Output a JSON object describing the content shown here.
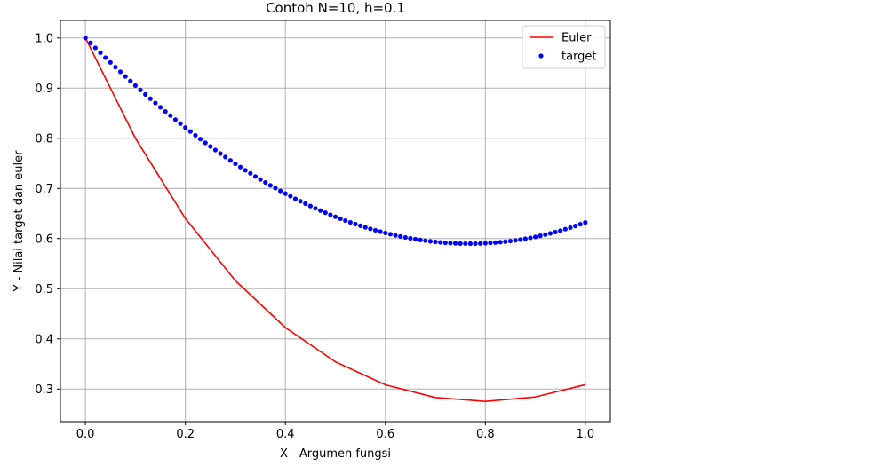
{
  "chart_data": {
    "type": "line",
    "title": "Contoh N=10, h=0.1",
    "xlabel": "X - Argumen fungsi",
    "ylabel": "Y - Nilai target dan euler",
    "xlim": [
      -0.05,
      1.05
    ],
    "ylim": [
      0.235,
      1.035
    ],
    "xticks": [
      "0.0",
      "0.2",
      "0.4",
      "0.6",
      "0.8",
      "1.0"
    ],
    "yticks": [
      "0.3",
      "0.4",
      "0.5",
      "0.6",
      "0.7",
      "0.8",
      "0.9",
      "1.0"
    ],
    "grid": true,
    "legend_position": "top-right",
    "series": [
      {
        "name": "Euler",
        "style": "line",
        "color": "#ff0000",
        "x": [
          0.0,
          0.1,
          0.2,
          0.3,
          0.4,
          0.5,
          0.6,
          0.7,
          0.8,
          0.9,
          1.0
        ],
        "y": [
          1.0,
          0.8,
          0.64,
          0.516,
          0.4224,
          0.3543,
          0.3084,
          0.2831,
          0.2753,
          0.2843,
          0.3088
        ]
      },
      {
        "name": "target",
        "style": "points",
        "color": "#0000ff",
        "x_range": [
          0.0,
          1.0
        ],
        "num_points": 101,
        "formula": "y = x^2 - 2x + 2 - e^(-x)"
      }
    ]
  }
}
